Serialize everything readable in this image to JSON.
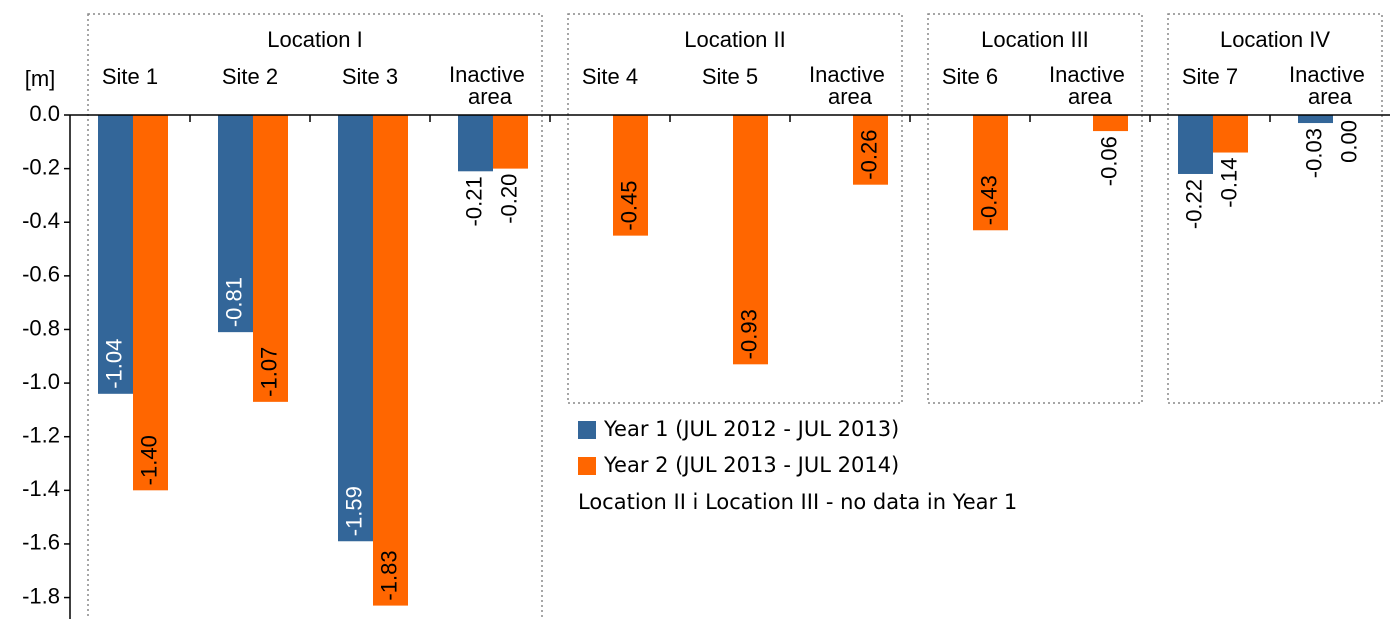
{
  "chart_data": {
    "type": "bar",
    "y_label": "[m]",
    "groups": [
      {
        "name": "Location I",
        "categories": [
          "Site 1",
          "Site 2",
          "Site 3",
          "Inactive area"
        ]
      },
      {
        "name": "Location II",
        "categories": [
          "Site 4",
          "Site 5",
          "Inactive area"
        ]
      },
      {
        "name": "Location III",
        "categories": [
          "Site 6",
          "Inactive area"
        ]
      },
      {
        "name": "Location IV",
        "categories": [
          "Site 7",
          "Inactive area"
        ]
      }
    ],
    "series": [
      {
        "name": "Year 1 (JUL 2012 - JUL 2013)",
        "color": "#336699",
        "values": [
          -1.04,
          -0.81,
          -1.59,
          -0.21,
          null,
          null,
          null,
          null,
          null,
          -0.22,
          -0.03
        ],
        "value_labels": [
          "-1.04",
          "-0.81",
          "-1.59",
          "-0.21",
          null,
          null,
          null,
          null,
          null,
          "-0.22",
          "-0.03"
        ]
      },
      {
        "name": "Year 2 (JUL 2013 - JUL 2014)",
        "color": "#ff6600",
        "values": [
          -1.4,
          -1.07,
          -1.83,
          -0.2,
          -0.45,
          -0.93,
          -0.26,
          -0.43,
          -0.06,
          -0.14,
          0.0
        ],
        "value_labels": [
          "-1.40",
          "-1.07",
          "-1.83",
          "-0.20",
          "-0.45",
          "-0.93",
          "-0.26",
          "-0.43",
          "-0.06",
          "-0.14",
          "0.00"
        ]
      }
    ],
    "note": "Location II i Location III - no data in Year 1",
    "ylim": [
      -1.88,
      0
    ],
    "yticks": [
      {
        "value": 0,
        "label": "0.0"
      },
      -0.2,
      -0.4,
      -0.6,
      -0.8,
      {
        "value": -1,
        "label": "-1.0"
      },
      -1.2,
      -1.4,
      -1.6,
      -1.8
    ]
  }
}
